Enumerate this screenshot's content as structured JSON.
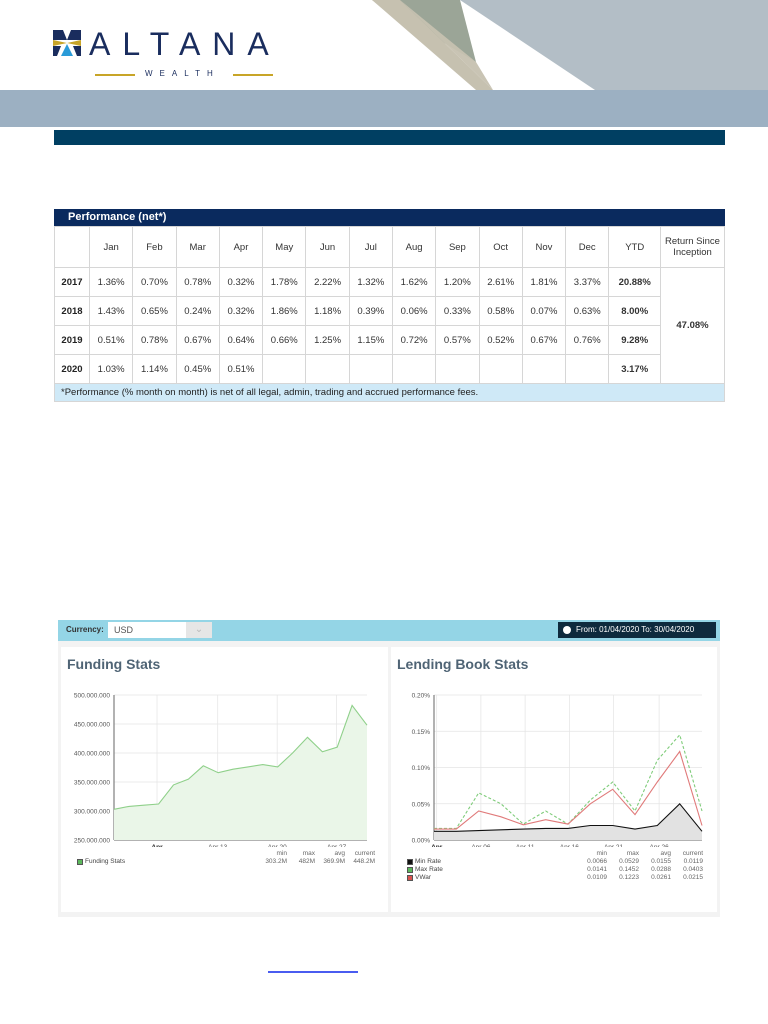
{
  "header": {
    "logo_text": "ALTANA",
    "logo_subtext": "WEALTH",
    "colors": {
      "navy": "#1a2d5e",
      "gold": "#c8a528",
      "band": "#9cb0c2",
      "title_bar": "#003f62"
    }
  },
  "performance": {
    "title": "Performance (net*)",
    "columns": [
      "",
      "Jan",
      "Feb",
      "Mar",
      "Apr",
      "May",
      "Jun",
      "Jul",
      "Aug",
      "Sep",
      "Oct",
      "Nov",
      "Dec",
      "YTD",
      "Return Since Inception"
    ],
    "rows": [
      {
        "year": "2017",
        "months": [
          "1.36%",
          "0.70%",
          "0.78%",
          "0.32%",
          "1.78%",
          "2.22%",
          "1.32%",
          "1.62%",
          "1.20%",
          "2.61%",
          "1.81%",
          "3.37%"
        ],
        "ytd": "20.88%"
      },
      {
        "year": "2018",
        "months": [
          "1.43%",
          "0.65%",
          "0.24%",
          "0.32%",
          "1.86%",
          "1.18%",
          "0.39%",
          "0.06%",
          "0.33%",
          "0.58%",
          "0.07%",
          "0.63%"
        ],
        "ytd": "8.00%"
      },
      {
        "year": "2019",
        "months": [
          "0.51%",
          "0.78%",
          "0.67%",
          "0.64%",
          "0.66%",
          "1.25%",
          "1.15%",
          "0.72%",
          "0.57%",
          "0.52%",
          "0.67%",
          "0.76%"
        ],
        "ytd": "9.28%"
      },
      {
        "year": "2020",
        "months": [
          "1.03%",
          "1.14%",
          "0.45%",
          "0.51%",
          "",
          "",
          "",
          "",
          "",
          "",
          "",
          ""
        ],
        "ytd": "3.17%"
      }
    ],
    "return_since_inception": "47.08%",
    "note": "*Performance (% month on month) is net of all legal, admin, trading and accrued performance fees."
  },
  "dashboard": {
    "currency_label": "Currency:",
    "currency_value": "USD",
    "date_range": "From: 01/04/2020 To: 30/04/2020",
    "funding": {
      "title": "Funding Stats",
      "y_ticks": [
        "500.000.000",
        "450.000.000",
        "400.000.000",
        "350.000.000",
        "300.000.000",
        "250.000.000"
      ],
      "x_ticks": [
        "Apr",
        "Apr 13",
        "Apr 20",
        "Apr 27"
      ],
      "legend_headers": [
        "min",
        "max",
        "avg",
        "current"
      ],
      "legend": [
        {
          "name": "Funding Stats",
          "color": "#5cb85c",
          "values": [
            "303.2M",
            "482M",
            "369.9M",
            "448.2M"
          ]
        }
      ]
    },
    "lending": {
      "title": "Lending Book Stats",
      "y_ticks": [
        "0.20%",
        "0.15%",
        "0.10%",
        "0.05%",
        "0.00%"
      ],
      "x_ticks": [
        "Apr",
        "Apr 06",
        "Apr 11",
        "Apr 16",
        "Apr 21",
        "Apr 26"
      ],
      "legend_headers": [
        "min",
        "max",
        "avg",
        "current"
      ],
      "legend": [
        {
          "name": "Min Rate",
          "color": "#111111",
          "values": [
            "0.0066",
            "0.0529",
            "0.0155",
            "0.0119"
          ]
        },
        {
          "name": "Max Rate",
          "color": "#5cb85c",
          "values": [
            "0.0141",
            "0.1452",
            "0.0288",
            "0.0403"
          ]
        },
        {
          "name": "VWar",
          "color": "#d9534f",
          "values": [
            "0.0109",
            "0.1223",
            "0.0261",
            "0.0215"
          ]
        }
      ]
    }
  },
  "chart_data": [
    {
      "type": "area",
      "title": "Funding Stats",
      "xlabel": "",
      "ylabel": "",
      "x": [
        "Mar 30",
        "Apr 01",
        "Apr 03",
        "Apr 05",
        "Apr 07",
        "Apr 08",
        "Apr 10",
        "Apr 13",
        "Apr 15",
        "Apr 17",
        "Apr 20",
        "Apr 22",
        "Apr 23",
        "Apr 25",
        "Apr 26",
        "Apr 27",
        "Apr 29",
        "Apr 30"
      ],
      "series": [
        {
          "name": "Funding Stats",
          "values": [
            303000000,
            308000000,
            310000000,
            312000000,
            345000000,
            355000000,
            378000000,
            366000000,
            372000000,
            376000000,
            380000000,
            376000000,
            400000000,
            427000000,
            402000000,
            410000000,
            482000000,
            448000000
          ]
        }
      ],
      "ylim": [
        250000000,
        500000000
      ],
      "grid": true,
      "legend_position": "bottom"
    },
    {
      "type": "line",
      "title": "Lending Book Stats",
      "xlabel": "",
      "ylabel": "",
      "x": [
        "Apr 01",
        "Apr 06",
        "Apr 09",
        "Apr 11",
        "Apr 16",
        "Apr 19",
        "Apr 21",
        "Apr 23",
        "Apr 24",
        "Apr 26",
        "Apr 28",
        "Apr 29",
        "Apr 30"
      ],
      "series": [
        {
          "name": "Min Rate",
          "values": [
            0.012,
            0.012,
            0.013,
            0.014,
            0.015,
            0.016,
            0.016,
            0.02,
            0.02,
            0.015,
            0.02,
            0.05,
            0.012
          ]
        },
        {
          "name": "Max Rate",
          "values": [
            0.016,
            0.016,
            0.065,
            0.05,
            0.022,
            0.04,
            0.022,
            0.055,
            0.08,
            0.04,
            0.11,
            0.145,
            0.04
          ]
        },
        {
          "name": "VWar",
          "values": [
            0.015,
            0.015,
            0.04,
            0.032,
            0.021,
            0.028,
            0.022,
            0.05,
            0.07,
            0.035,
            0.08,
            0.122,
            0.02
          ]
        }
      ],
      "ylim": [
        0,
        0.2
      ],
      "grid": true,
      "legend_position": "bottom"
    }
  ]
}
